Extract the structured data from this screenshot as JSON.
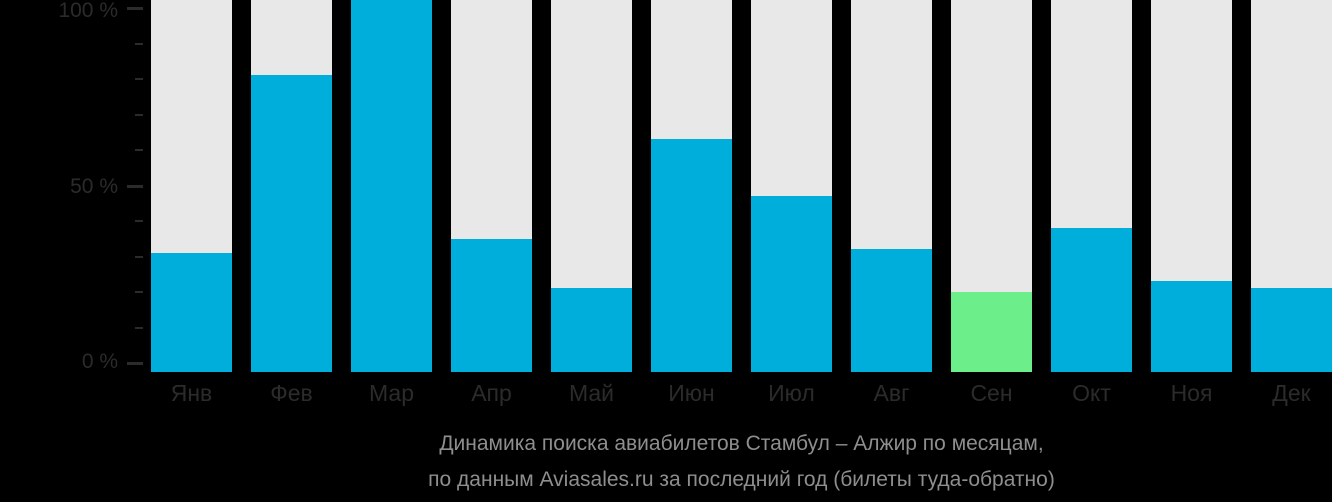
{
  "chart_data": {
    "type": "bar",
    "title": "Динамика поиска авиабилетов Стамбул – Алжир по месяцам, по данным Aviasales.ru за последний год (билеты туда-обратно)",
    "categories": [
      "Янв",
      "Фев",
      "Мар",
      "Апр",
      "Май",
      "Июн",
      "Июл",
      "Авг",
      "Сен",
      "Окт",
      "Ноя",
      "Дек"
    ],
    "values": [
      31,
      81,
      100,
      35,
      21,
      63,
      47,
      32,
      20,
      38,
      23,
      21
    ],
    "unit": "%",
    "highlight_index": 8,
    "highlight_category": "Сен",
    "xlabel": "",
    "ylabel": "",
    "ylim": [
      0,
      100
    ],
    "ytick_minor_step": 10,
    "ytick_labels": [
      "100 %",
      "50 %",
      "0 %"
    ],
    "grid": false,
    "legend": null,
    "layout": "bars on full-height light tracks, dark background, title below chart",
    "colors": {
      "background": "#000000",
      "bar": "#00aedc",
      "highlight": "#6cee8b",
      "track": "#e8e8e8",
      "axis_text": "#2b2b2b",
      "title_text": "#8e8e8e"
    }
  },
  "yaxis": {
    "labels": [
      "100 %",
      "50 %",
      "0 %"
    ]
  },
  "title": {
    "line1": "Динамика поиска авиабилетов Стамбул – Алжир по месяцам,",
    "line2": "по данным Aviasales.ru за последний год (билеты туда-обратно)"
  }
}
